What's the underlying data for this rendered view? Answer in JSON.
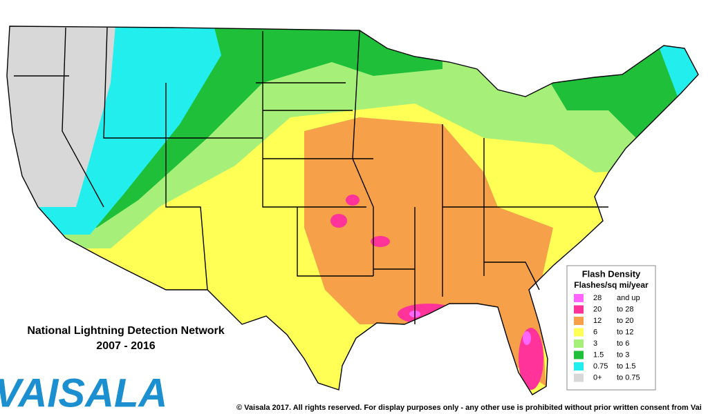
{
  "title": {
    "line1": "National Lightning Detection Network",
    "line2": "2007 - 2016"
  },
  "legend": {
    "title": "Flash Density",
    "subtitle": "Flashes/sq mi/year",
    "rows": [
      {
        "from": "28",
        "to": "and up",
        "color": "#ff66ff"
      },
      {
        "from": "20",
        "to": "to 28",
        "color": "#ff3399"
      },
      {
        "from": "12",
        "to": "to 20",
        "color": "#f7a04a"
      },
      {
        "from": "6",
        "to": "to 12",
        "color": "#ffff55"
      },
      {
        "from": "3",
        "to": "to 6",
        "color": "#a6f07a"
      },
      {
        "from": "1.5",
        "to": "to 3",
        "color": "#1fbf3a"
      },
      {
        "from": "0.75",
        "to": "to 1.5",
        "color": "#22eeee"
      },
      {
        "from": "0+",
        "to": "to 0.75",
        "color": "#d8d8d8"
      }
    ]
  },
  "logo": "VAISALA",
  "copyright": "© Vaisala 2017. All rights reserved. For display purposes only - any other use is prohibited without prior written consent from Vai"
}
